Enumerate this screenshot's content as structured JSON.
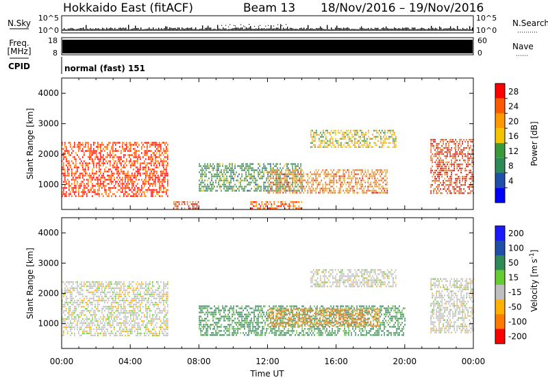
{
  "header": {
    "title": "Hokkaido East (fitACF)",
    "beam": "Beam 13",
    "date_range": "18/Nov/2016 – 19/Nov/2016"
  },
  "info_panels": {
    "nsky_label": "N.Sky",
    "nsky_ticks": [
      "10^5",
      "10^0"
    ],
    "nsearch_label": "N.Search",
    "nsearch_ticks": [
      "10^5",
      "10^0"
    ],
    "freq_label": "Freq.",
    "freq_unit": "[MHz]",
    "freq_ticks": [
      "18",
      "8"
    ],
    "nave_label": "Nave",
    "nave_ticks": [
      "60",
      "0"
    ],
    "cpid_label": "CPID",
    "cpid_value": "normal (fast) 151"
  },
  "axes": {
    "x_label": "Time UT",
    "x_ticks": [
      "00:00",
      "04:00",
      "08:00",
      "12:00",
      "16:00",
      "20:00",
      "00:00"
    ],
    "y_label": "Slant Range [km]",
    "y_ticks": [
      "1000",
      "2000",
      "3000",
      "4000"
    ]
  },
  "colorbars": {
    "power": {
      "label": "Power [dB]",
      "ticks": [
        "28",
        "24",
        "20",
        "16",
        "12",
        "8",
        "4"
      ]
    },
    "velocity": {
      "label_main": "Velocity [m s",
      "label_sup": "-1",
      "label_end": "]",
      "ticks": [
        "200",
        "100",
        "50",
        "15",
        "-15",
        "-50",
        "-100",
        "-200"
      ]
    }
  },
  "chart_data": [
    {
      "type": "heatmap",
      "parameter": "power",
      "units": "dB",
      "x_range_hours": [
        0,
        24
      ],
      "y_range_km": [
        180,
        4500
      ],
      "color_range": [
        0,
        30
      ],
      "regions": [
        {
          "t_start": 0.0,
          "t_end": 6.2,
          "r_min": 600,
          "r_max": 2400,
          "level": 28
        },
        {
          "t_start": 6.5,
          "t_end": 8.0,
          "r_min": 200,
          "r_max": 450,
          "level": 28
        },
        {
          "t_start": 11.0,
          "t_end": 14.0,
          "r_min": 200,
          "r_max": 450,
          "level": 26
        },
        {
          "t_start": 8.0,
          "t_end": 14.0,
          "r_min": 800,
          "r_max": 1700,
          "level": 12
        },
        {
          "t_start": 12.0,
          "t_end": 19.0,
          "r_min": 700,
          "r_max": 1500,
          "level": 24
        },
        {
          "t_start": 14.5,
          "t_end": 19.5,
          "r_min": 2200,
          "r_max": 2800,
          "level": 18
        },
        {
          "t_start": 21.5,
          "t_end": 24.0,
          "r_min": 700,
          "r_max": 2500,
          "level": 28
        }
      ]
    },
    {
      "type": "heatmap",
      "parameter": "velocity",
      "units": "m s^-1",
      "x_range_hours": [
        0,
        24
      ],
      "y_range_km": [
        180,
        4500
      ],
      "color_range": [
        -200,
        200
      ],
      "regions": [
        {
          "t_start": 0.0,
          "t_end": 6.2,
          "r_min": 600,
          "r_max": 2400,
          "level": 0
        },
        {
          "t_start": 8.0,
          "t_end": 20.0,
          "r_min": 600,
          "r_max": 1600,
          "level": 40
        },
        {
          "t_start": 12.0,
          "t_end": 18.5,
          "r_min": 900,
          "r_max": 1500,
          "level": -40
        },
        {
          "t_start": 14.5,
          "t_end": 19.5,
          "r_min": 2200,
          "r_max": 2800,
          "level": 0
        },
        {
          "t_start": 21.5,
          "t_end": 24.0,
          "r_min": 700,
          "r_max": 2500,
          "level": 0
        }
      ]
    }
  ]
}
